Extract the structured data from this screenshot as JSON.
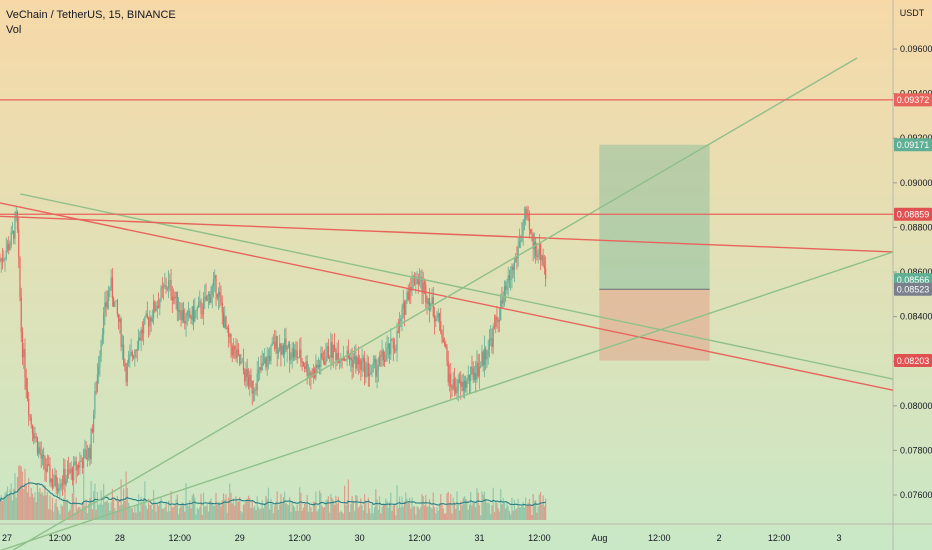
{
  "header": {
    "title": "VeChain / TetherUS, 15, BINANCE",
    "indicator": "Vol"
  },
  "chart_data": {
    "type": "candlestick",
    "symbol": "VeChain / TetherUS",
    "interval": "15",
    "exchange": "BINANCE",
    "currency_label": "USDT",
    "y_ticks": [
      "0.09600",
      "0.09400",
      "0.09200",
      "0.09000",
      "0.08800",
      "0.08600",
      "0.08400",
      "0.08200",
      "0.08000",
      "0.07800",
      "0.07600"
    ],
    "y_tick_values": [
      0.096,
      0.094,
      0.092,
      0.09,
      0.088,
      0.086,
      0.084,
      0.082,
      0.08,
      0.078,
      0.076
    ],
    "ylim": [
      0.0747,
      0.0982
    ],
    "x_ticks": [
      "27",
      "12:00",
      "28",
      "12:00",
      "29",
      "12:00",
      "30",
      "12:00",
      "31",
      "12:00",
      "Aug",
      "12:00",
      "2",
      "12:00",
      "3"
    ],
    "x_tick_days": [
      0,
      0.5,
      1,
      1.5,
      2,
      2.5,
      3,
      3.5,
      4,
      4.5,
      5,
      5.5,
      6,
      6.5,
      7
    ],
    "xlim_days": [
      0,
      7.45
    ],
    "last_candle_day": 4.56,
    "price_path": [
      [
        0.0,
        0.0865
      ],
      [
        0.1,
        0.0875
      ],
      [
        0.14,
        0.0885
      ],
      [
        0.18,
        0.083
      ],
      [
        0.25,
        0.0795
      ],
      [
        0.35,
        0.0775
      ],
      [
        0.45,
        0.0765
      ],
      [
        0.6,
        0.077
      ],
      [
        0.75,
        0.078
      ],
      [
        0.85,
        0.0835
      ],
      [
        0.92,
        0.0855
      ],
      [
        1.0,
        0.0835
      ],
      [
        1.05,
        0.0815
      ],
      [
        1.15,
        0.083
      ],
      [
        1.25,
        0.084
      ],
      [
        1.4,
        0.0855
      ],
      [
        1.55,
        0.0838
      ],
      [
        1.7,
        0.0845
      ],
      [
        1.8,
        0.0855
      ],
      [
        1.9,
        0.083
      ],
      [
        2.1,
        0.0808
      ],
      [
        2.3,
        0.0828
      ],
      [
        2.5,
        0.0822
      ],
      [
        2.6,
        0.0814
      ],
      [
        2.75,
        0.0825
      ],
      [
        2.9,
        0.0822
      ],
      [
        3.1,
        0.0815
      ],
      [
        3.3,
        0.0828
      ],
      [
        3.42,
        0.0855
      ],
      [
        3.48,
        0.0858
      ],
      [
        3.58,
        0.0848
      ],
      [
        3.7,
        0.0832
      ],
      [
        3.75,
        0.081
      ],
      [
        3.85,
        0.0808
      ],
      [
        4.0,
        0.0818
      ],
      [
        4.1,
        0.083
      ],
      [
        4.2,
        0.0848
      ],
      [
        4.3,
        0.0865
      ],
      [
        4.38,
        0.0885
      ],
      [
        4.45,
        0.0872
      ],
      [
        4.52,
        0.0868
      ],
      [
        4.56,
        0.08566
      ]
    ],
    "price_lines": [
      {
        "value": 0.09372,
        "label": "0.09372",
        "color": "#e8635c"
      },
      {
        "value": 0.08859,
        "label": "0.08859",
        "color": "#e8635c"
      }
    ],
    "price_badges": [
      {
        "value": 0.09372,
        "label": "0.09372",
        "color": "#e8635c"
      },
      {
        "value": 0.09171,
        "label": "0.09171",
        "color": "#5faf94"
      },
      {
        "value": 0.08859,
        "label": "0.08859",
        "color": "#e05050"
      },
      {
        "value": 0.08566,
        "label": "0.08566",
        "color": "#5faf94"
      },
      {
        "value": 0.08523,
        "label": "0.08523",
        "color": "#7a7f8c"
      },
      {
        "value": 0.08203,
        "label": "0.08203",
        "color": "#e05050"
      }
    ],
    "trendlines": [
      {
        "from": [
          0.17,
          0.0895
        ],
        "to": [
          7.45,
          0.0812
        ],
        "color": "#8fc08a"
      },
      {
        "from": [
          0.0,
          0.0891
        ],
        "to": [
          7.45,
          0.0807
        ],
        "color": "#e8635c"
      },
      {
        "from": [
          0.0,
          0.0885
        ],
        "to": [
          7.45,
          0.0869
        ],
        "color": "#e8635c"
      },
      {
        "from": [
          0.0,
          0.0735
        ],
        "to": [
          7.45,
          0.0869
        ],
        "color": "#8fc08a"
      },
      {
        "from": [
          0.1,
          0.0735
        ],
        "to": [
          7.15,
          0.0956
        ],
        "color": "#8fc08a"
      }
    ],
    "position_tool": {
      "type": "long",
      "x_days": [
        5.0,
        5.92
      ],
      "target": 0.09171,
      "entry": 0.08523,
      "stop": 0.08203
    },
    "volume_panel": true,
    "grid": false
  },
  "colors": {
    "bg_top": "#f7d9a8",
    "bg_bottom": "#c9e8c6",
    "up": "#5faf94",
    "down": "#e8635c"
  }
}
